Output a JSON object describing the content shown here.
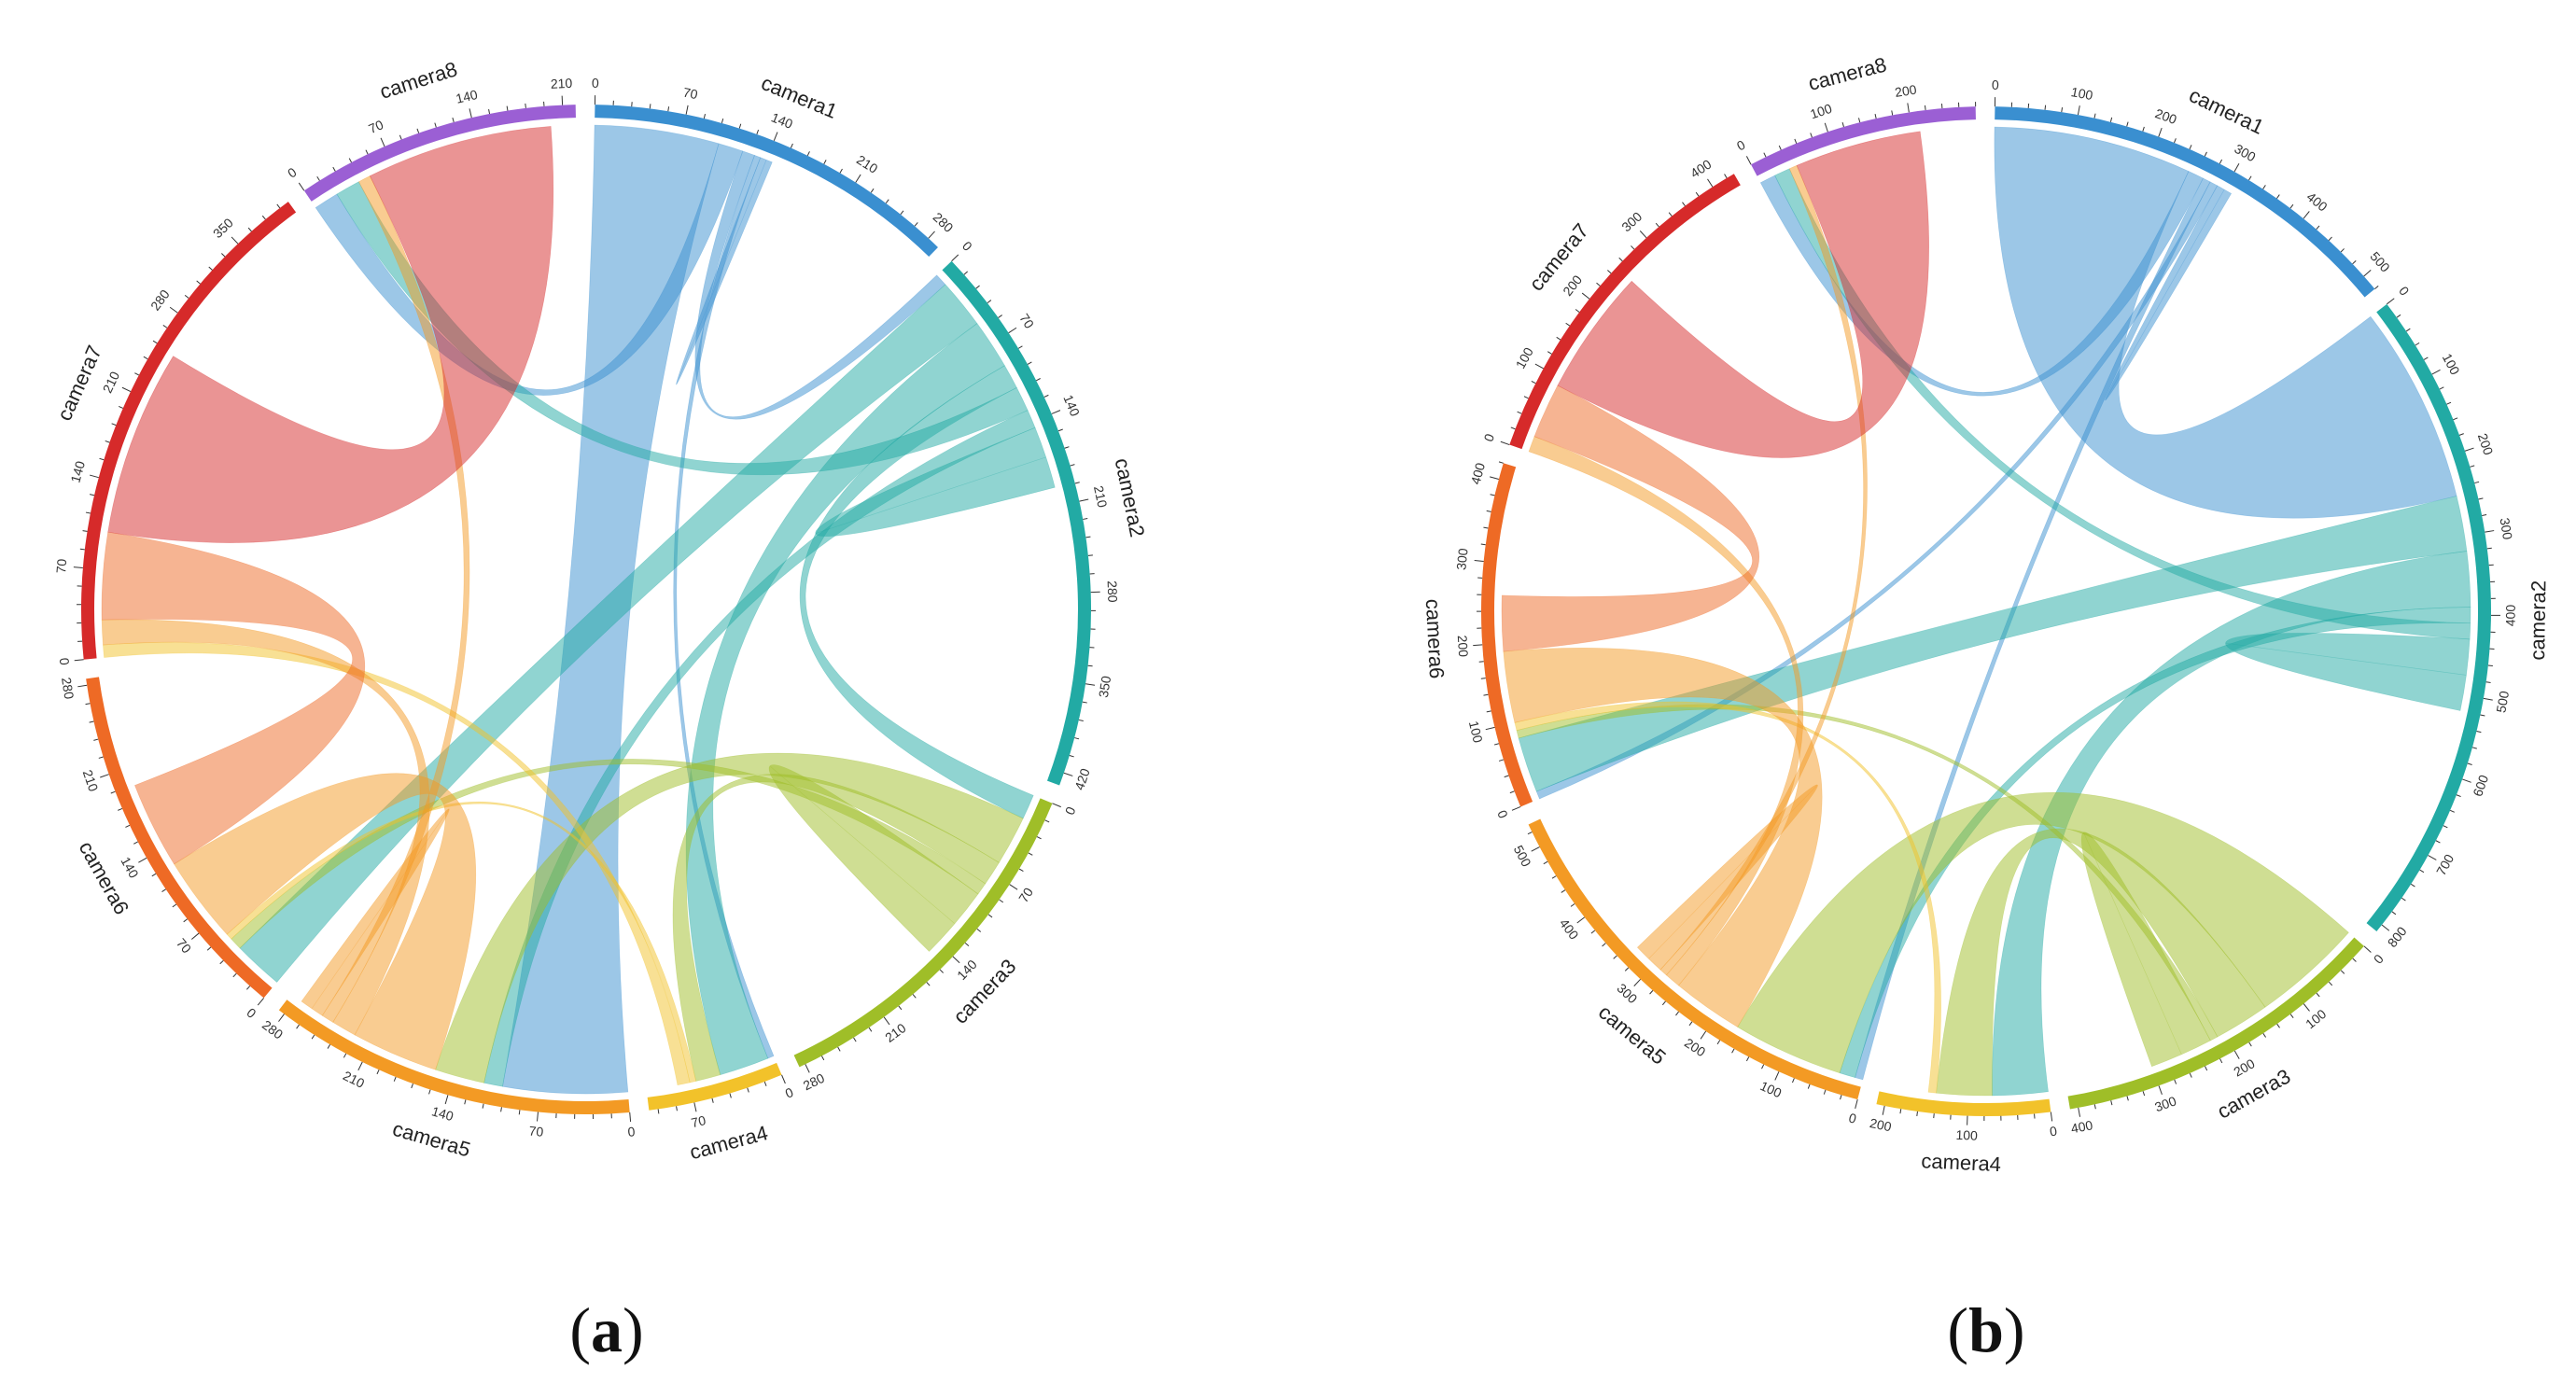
{
  "figure": {
    "panels": [
      {
        "id": "a",
        "caption_open": "(",
        "caption_letter": "a",
        "caption_close": ")"
      },
      {
        "id": "b",
        "caption_open": "(",
        "caption_letter": "b",
        "caption_close": ")"
      }
    ]
  },
  "chart_data": [
    {
      "type": "chord",
      "panel": "a",
      "segments": [
        {
          "name": "camera1",
          "total": 290,
          "tick_step": 70,
          "color": "#3a8fd0"
        },
        {
          "name": "camera2",
          "total": 430,
          "tick_step": 70,
          "color": "#22aaa4"
        },
        {
          "name": "camera3",
          "total": 285,
          "tick_step": 70,
          "color": "#9fbe28"
        },
        {
          "name": "camera4",
          "total": 105,
          "tick_step": 70,
          "color": "#f2c22a"
        },
        {
          "name": "camera5",
          "total": 285,
          "tick_step": 70,
          "color": "#f39a24"
        },
        {
          "name": "camera6",
          "total": 285,
          "tick_step": 70,
          "color": "#ee6a25"
        },
        {
          "name": "camera7",
          "total": 400,
          "tick_step": 70,
          "color": "#d62a2a"
        },
        {
          "name": "camera8",
          "total": 220,
          "tick_step": 70,
          "color": "#9b5fd4"
        }
      ],
      "flows": [
        [
          "camera1",
          "camera5",
          100
        ],
        [
          "camera1",
          "camera8",
          20
        ],
        [
          "camera1",
          "camera2",
          10
        ],
        [
          "camera1",
          "camera4",
          5
        ],
        [
          "camera2",
          "camera6",
          40
        ],
        [
          "camera2",
          "camera4",
          40
        ],
        [
          "camera2",
          "camera3",
          20
        ],
        [
          "camera2",
          "camera8",
          20
        ],
        [
          "camera2",
          "camera5",
          15
        ],
        [
          "camera3",
          "camera5",
          40
        ],
        [
          "camera3",
          "camera4",
          20
        ],
        [
          "camera3",
          "camera6",
          10
        ],
        [
          "camera4",
          "camera6",
          5
        ],
        [
          "camera4",
          "camera7",
          10
        ],
        [
          "camera5",
          "camera6",
          70
        ],
        [
          "camera5",
          "camera7",
          20
        ],
        [
          "camera5",
          "camera8",
          10
        ],
        [
          "camera6",
          "camera7",
          70
        ],
        [
          "camera7",
          "camera8",
          150
        ],
        [
          "camera1",
          "camera1",
          10
        ],
        [
          "camera2",
          "camera2",
          50
        ],
        [
          "camera3",
          "camera3",
          60
        ],
        [
          "camera5",
          "camera5",
          20
        ]
      ]
    },
    {
      "type": "chord",
      "panel": "b",
      "segments": [
        {
          "name": "camera1",
          "total": 520,
          "tick_step": 100,
          "color": "#3a8fd0"
        },
        {
          "name": "camera2",
          "total": 810,
          "tick_step": 100,
          "color": "#22aaa4"
        },
        {
          "name": "camera3",
          "total": 410,
          "tick_step": 100,
          "color": "#9fbe28"
        },
        {
          "name": "camera4",
          "total": 210,
          "tick_step": 100,
          "color": "#f2c22a"
        },
        {
          "name": "camera5",
          "total": 530,
          "tick_step": 100,
          "color": "#f39a24"
        },
        {
          "name": "camera6",
          "total": 420,
          "tick_step": 100,
          "color": "#ee6a25"
        },
        {
          "name": "camera7",
          "total": 430,
          "tick_step": 100,
          "color": "#d62a2a"
        },
        {
          "name": "camera8",
          "total": 280,
          "tick_step": 100,
          "color": "#9b5fd4"
        }
      ],
      "flows": [
        [
          "camera1",
          "camera2",
          250
        ],
        [
          "camera1",
          "camera8",
          20
        ],
        [
          "camera1",
          "camera5",
          10
        ],
        [
          "camera1",
          "camera6",
          10
        ],
        [
          "camera2",
          "camera6",
          70
        ],
        [
          "camera2",
          "camera4",
          70
        ],
        [
          "camera2",
          "camera5",
          20
        ],
        [
          "camera2",
          "camera8",
          20
        ],
        [
          "camera3",
          "camera5",
          140
        ],
        [
          "camera3",
          "camera4",
          70
        ],
        [
          "camera3",
          "camera6",
          10
        ],
        [
          "camera4",
          "camera6",
          10
        ],
        [
          "camera5",
          "camera6",
          90
        ],
        [
          "camera5",
          "camera7",
          20
        ],
        [
          "camera5",
          "camera8",
          10
        ],
        [
          "camera6",
          "camera7",
          70
        ],
        [
          "camera7",
          "camera8",
          160
        ],
        [
          "camera1",
          "camera1",
          20
        ],
        [
          "camera2",
          "camera2",
          90
        ],
        [
          "camera3",
          "camera3",
          80
        ],
        [
          "camera5",
          "camera5",
          40
        ]
      ]
    }
  ]
}
